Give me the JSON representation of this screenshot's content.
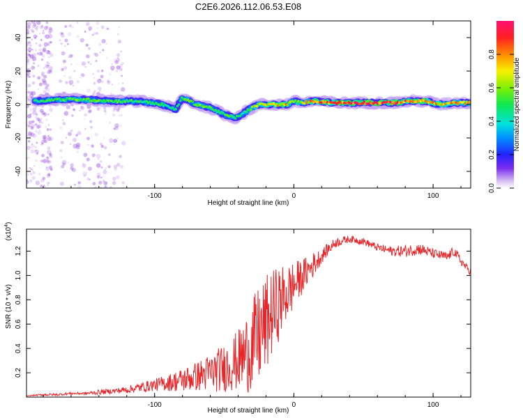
{
  "title": "C2E6.2026.112.06.53.E08",
  "colors": {
    "background": "#ffffff",
    "snr_line": "#e8262a",
    "scatter_faint": "#9a4fe0"
  },
  "chart_data": [
    {
      "type": "heatmap",
      "title": "C2E6.2026.112.06.53.E08",
      "xlabel": "Height of straight line (km)",
      "ylabel": "Frequency (Hz)",
      "xlim": [
        -192,
        127
      ],
      "ylim": [
        -50,
        50
      ],
      "xticks": [
        -100,
        0,
        100
      ],
      "xtick_labels": [
        "-100",
        "0",
        "100"
      ],
      "yticks": [
        -40,
        -20,
        0,
        20,
        40
      ],
      "ytick_labels": [
        "-40",
        "-20",
        "0",
        "20",
        "40"
      ],
      "grid": false,
      "colorbar": {
        "label": "Normalized spectral amplitude",
        "range": [
          0,
          1
        ],
        "ticks": [
          0,
          0.2,
          0.4,
          0.6,
          0.8
        ],
        "tick_labels": [
          "0.0",
          "0.2",
          "0.4",
          "0.6",
          "0.8"
        ],
        "colormap": "rainbow (white-violet-blue-cyan-green-yellow-red-magenta)"
      },
      "ridge": {
        "description": "main spectral ridge near 0 Hz",
        "x": [
          -185,
          -170,
          -150,
          -130,
          -110,
          -95,
          -85,
          -80,
          -70,
          -60,
          -50,
          -42,
          -36,
          -30,
          -25,
          -15,
          -5,
          0,
          5,
          15,
          30,
          50,
          70,
          85,
          95,
          105,
          115,
          127
        ],
        "frequency": [
          2,
          3,
          3,
          2,
          2,
          0,
          -3,
          4,
          0,
          -2,
          -6,
          -8,
          -5,
          -2,
          0,
          0,
          0,
          2,
          1,
          2,
          1,
          1,
          1,
          2,
          2,
          0,
          1,
          1
        ],
        "amplitude": [
          0.5,
          0.55,
          0.6,
          0.55,
          0.5,
          0.55,
          0.45,
          0.55,
          0.6,
          0.55,
          0.55,
          0.5,
          0.5,
          0.65,
          0.7,
          0.75,
          0.8,
          0.6,
          0.7,
          0.85,
          0.9,
          0.95,
          0.95,
          0.9,
          0.85,
          0.75,
          0.8,
          0.75
        ]
      }
    },
    {
      "type": "line",
      "xlabel": "Height of straight line (km)",
      "ylabel": "SNR (10 * v/v)",
      "y_multiplier_label": "(x10",
      "y_multiplier_exp": "4",
      "y_multiplier_close": ")",
      "xlim": [
        -192,
        127
      ],
      "ylim": [
        0,
        1.38
      ],
      "xticks": [
        -100,
        0,
        100
      ],
      "xtick_labels": [
        "-100",
        "0",
        "100"
      ],
      "yticks": [
        0.2,
        0.4,
        0.6,
        0.8,
        1.0,
        1.2
      ],
      "ytick_labels": [
        "0.2",
        "0.4",
        "0.6",
        "0.8",
        "1.0",
        "1.2"
      ],
      "grid": false,
      "series": [
        {
          "color": "#e8262a",
          "x": [
            -192,
            -180,
            -170,
            -160,
            -150,
            -140,
            -130,
            -120,
            -110,
            -100,
            -90,
            -80,
            -70,
            -60,
            -50,
            -40,
            -35,
            -30,
            -25,
            -20,
            -15,
            -10,
            -5,
            0,
            5,
            10,
            15,
            20,
            25,
            30,
            40,
            50,
            60,
            70,
            80,
            90,
            100,
            110,
            115,
            120,
            125,
            127
          ],
          "values": [
            0.01,
            0.02,
            0.02,
            0.03,
            0.03,
            0.04,
            0.05,
            0.06,
            0.08,
            0.1,
            0.12,
            0.14,
            0.17,
            0.2,
            0.24,
            0.3,
            0.35,
            0.42,
            0.5,
            0.6,
            0.7,
            0.78,
            0.85,
            0.92,
            0.98,
            1.04,
            1.1,
            1.16,
            1.22,
            1.27,
            1.3,
            1.28,
            1.23,
            1.2,
            1.2,
            1.22,
            1.18,
            1.15,
            1.2,
            1.12,
            1.05,
            1.03
          ],
          "noise": [
            0.0,
            0.01,
            0.01,
            0.01,
            0.01,
            0.02,
            0.02,
            0.03,
            0.04,
            0.05,
            0.07,
            0.1,
            0.12,
            0.16,
            0.2,
            0.25,
            0.32,
            0.38,
            0.42,
            0.4,
            0.35,
            0.3,
            0.25,
            0.2,
            0.15,
            0.12,
            0.1,
            0.06,
            0.05,
            0.04,
            0.03,
            0.03,
            0.03,
            0.04,
            0.05,
            0.05,
            0.04,
            0.04,
            0.04,
            0.04,
            0.03,
            0.03
          ]
        }
      ]
    }
  ]
}
